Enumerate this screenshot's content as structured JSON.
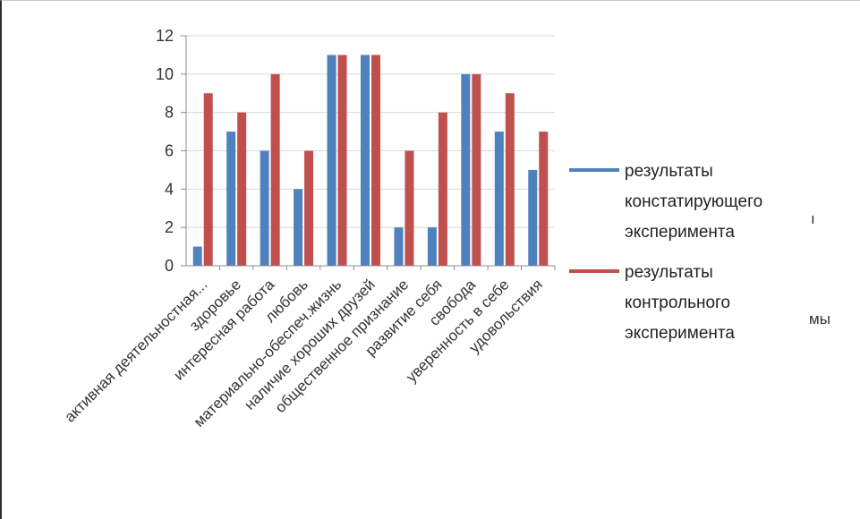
{
  "chart_data": {
    "type": "bar",
    "categories": [
      "активная деятельностная...",
      "здоровье",
      "интересная работа",
      "любовь",
      "материально-обеспеч.жизнь",
      "наличие хороших друзей",
      "общественное признание",
      "развитие себя",
      "свобода",
      "уверенность в себе",
      "удовольствия"
    ],
    "series": [
      {
        "name": "результаты констатирующего эксперимента",
        "name_lines": [
          "результаты",
          "констатирующего",
          "эксперимента"
        ],
        "color": "#4f81bd",
        "values": [
          1,
          7,
          6,
          4,
          11,
          11,
          2,
          2,
          10,
          7,
          5
        ]
      },
      {
        "name": "результаты контрольного эксперимента",
        "name_lines": [
          "результаты",
          "контрольного",
          "эксперимента"
        ],
        "color": "#c0504d",
        "values": [
          9,
          8,
          10,
          6,
          11,
          11,
          6,
          8,
          10,
          9,
          7
        ]
      }
    ],
    "ylim": [
      0,
      12
    ],
    "yticks": [
      0,
      2,
      4,
      6,
      8,
      10,
      12
    ],
    "grid": true,
    "legend": "right",
    "title": "",
    "xlabel": "",
    "ylabel": ""
  },
  "artifacts": {
    "stray_right_top": "ı",
    "stray_right_bottom": "мы"
  }
}
